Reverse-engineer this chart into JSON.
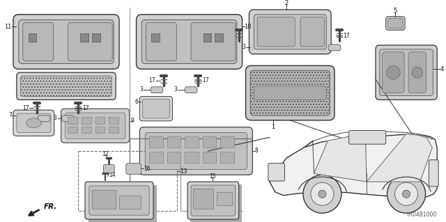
{
  "bg_color": "#ffffff",
  "lc": "#222222",
  "fig_width": 6.4,
  "fig_height": 3.19,
  "dpi": 100,
  "diagram_code": "TR04B1000",
  "fr_label": "FR."
}
